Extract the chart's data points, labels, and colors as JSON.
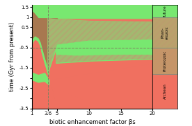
{
  "xlim": [
    1,
    20
  ],
  "ylim": [
    -3.5,
    1.6
  ],
  "xlabel": "biotic enhancement factor βs",
  "ylabel": "time (Gyr from present)",
  "vline_x": 3.6,
  "hline_y": -0.5,
  "red_color": "#f07060",
  "green_color": "#78e870",
  "brown_color": "#a87850",
  "hatch_color": "#c09870",
  "era_boundaries": [
    1.0,
    -0.5,
    -1.8
  ],
  "eras": [
    {
      "text": "future",
      "ybot": 1.0,
      "ytop": 1.6
    },
    {
      "text": "Phan-\nerozoic",
      "ybot": -0.5,
      "ytop": 1.0
    },
    {
      "text": "Proterozoic",
      "ybot": -1.8,
      "ytop": -0.5
    },
    {
      "text": "Archean",
      "ybot": -3.5,
      "ytop": -1.8
    }
  ]
}
